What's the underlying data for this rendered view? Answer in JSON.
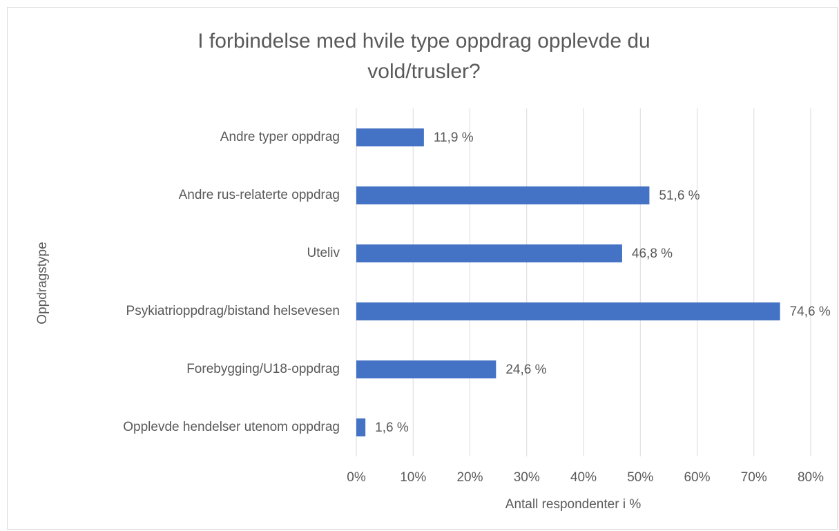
{
  "chart_data": {
    "type": "bar",
    "orientation": "horizontal",
    "title": "I forbindelse med hvile type oppdrag opplevde du vold/trusler?",
    "x_label": "Antall respondenter i %",
    "y_label": "Oppdragstype",
    "categories": [
      "Andre typer oppdrag",
      "Andre rus-relaterte oppdrag",
      "Uteliv",
      "Psykiatrioppdrag/bistand helsevesen",
      "Forebygging/U18-oppdrag",
      "Opplevde hendelser utenom oppdrag"
    ],
    "values": [
      11.9,
      51.6,
      46.8,
      74.6,
      24.6,
      1.6
    ],
    "value_labels": [
      "11,9 %",
      "51,6 %",
      "46,8 %",
      "74,6 %",
      "24,6 %",
      "1,6 %"
    ],
    "color": "#4472c4",
    "xlim": [
      0,
      80
    ],
    "xticks": [
      {
        "value": 0,
        "label": "0%"
      },
      {
        "value": 10,
        "label": "10%"
      },
      {
        "value": 20,
        "label": "20%"
      },
      {
        "value": 30,
        "label": "30%"
      },
      {
        "value": 40,
        "label": "40%"
      },
      {
        "value": 50,
        "label": "50%"
      },
      {
        "value": 60,
        "label": "60%"
      },
      {
        "value": 70,
        "label": "70%"
      },
      {
        "value": 80,
        "label": "80%"
      }
    ],
    "grid": true
  }
}
